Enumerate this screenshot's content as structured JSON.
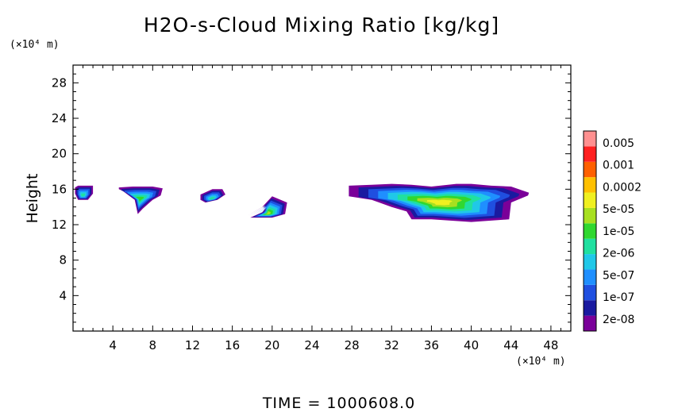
{
  "chart_data": {
    "type": "heatmap",
    "title": "H2O-s-Cloud Mixing Ratio [kg/kg]",
    "ylabel": "Height",
    "x_unit": "(×10⁴ m)",
    "y_unit": "(×10⁴ m)",
    "xlim": [
      0,
      50
    ],
    "ylim": [
      0,
      30
    ],
    "x_ticks": [
      4,
      8,
      12,
      16,
      20,
      24,
      28,
      32,
      36,
      40,
      44,
      48
    ],
    "y_ticks": [
      4,
      8,
      12,
      16,
      20,
      24,
      28
    ],
    "colorbar": {
      "labels": [
        "0.005",
        "0.001",
        "0.0002",
        "5e-05",
        "1e-05",
        "2e-06",
        "5e-07",
        "1e-07",
        "2e-08"
      ],
      "colors": [
        "#7a0099",
        "#1a1aa0",
        "#1f4fe0",
        "#1f8fff",
        "#20c8e8",
        "#20e0a0",
        "#30d830",
        "#a8e020",
        "#f0f020",
        "#ffc000",
        "#ff6000",
        "#ff2020",
        "#ff9090"
      ]
    },
    "cloud_regions": [
      {
        "name": "cloud-1",
        "x": [
          0.2,
          0.5,
          2.0,
          2.0,
          1.5,
          0.5,
          0.2
        ],
        "y": [
          16.2,
          16.4,
          16.4,
          15.5,
          14.8,
          14.8,
          15.5
        ],
        "level": 5
      },
      {
        "name": "cloud-2",
        "x": [
          4.6,
          6.0,
          8.0,
          9.0,
          8.8,
          8.0,
          7.0,
          6.5,
          6.2,
          5.0,
          4.6
        ],
        "y": [
          16.2,
          16.3,
          16.3,
          16.1,
          15.3,
          14.8,
          13.8,
          13.2,
          14.8,
          15.8,
          16.0
        ],
        "level": 6
      },
      {
        "name": "cloud-3",
        "x": [
          12.8,
          14.0,
          15.0,
          15.3,
          14.5,
          13.3,
          12.8
        ],
        "y": [
          15.4,
          16.0,
          16.0,
          15.4,
          14.8,
          14.5,
          14.8
        ],
        "level": 5
      },
      {
        "name": "cloud-4",
        "x": [
          17.5,
          19.0,
          20.0,
          21.5,
          21.3,
          20.0,
          17.8,
          19.0,
          19.8
        ],
        "y": [
          13.0,
          14.0,
          15.2,
          14.5,
          13.2,
          12.8,
          12.8,
          13.4,
          14.5
        ],
        "level": 7
      },
      {
        "name": "cloud-5",
        "x": [
          27.7,
          30.0,
          32.0,
          34.0,
          36.0,
          38.5,
          40.0,
          42.0,
          44.0,
          45.8,
          45.7,
          44.0,
          43.8,
          40.0,
          36.0,
          34.0,
          33.5,
          32.0,
          30.0,
          27.7
        ],
        "y": [
          16.4,
          16.5,
          16.6,
          16.5,
          16.3,
          16.6,
          16.6,
          16.4,
          16.3,
          15.6,
          15.3,
          14.5,
          12.6,
          12.3,
          12.6,
          12.6,
          13.5,
          14.0,
          14.8,
          15.2
        ],
        "level": 8
      }
    ],
    "time_label": "TIME  =  1000608.0"
  }
}
